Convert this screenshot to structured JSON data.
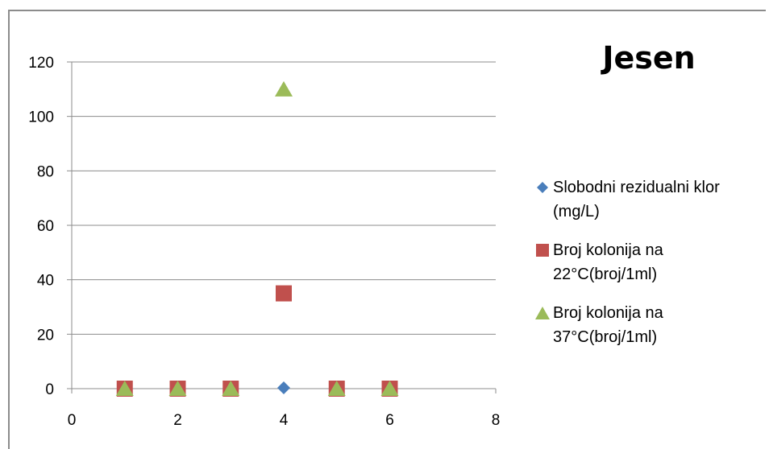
{
  "chart_data": {
    "type": "scatter",
    "title": "Jesen",
    "xlim": [
      0,
      8
    ],
    "ylim": [
      0,
      120
    ],
    "x_ticks": [
      "0",
      "2",
      "4",
      "6",
      "8"
    ],
    "y_ticks": [
      "0",
      "20",
      "40",
      "60",
      "80",
      "100",
      "120"
    ],
    "grid": "horizontal",
    "legend_position": "right",
    "series": [
      {
        "name": "Slobodni rezidualni klor (mg/L)",
        "marker": "diamond",
        "color": "#4a7ebb",
        "x": [
          1,
          2,
          3,
          4,
          5,
          6
        ],
        "y": [
          0.3,
          0.3,
          0.3,
          0.3,
          0.3,
          0.3
        ]
      },
      {
        "name": "Broj kolonija na 22°C(broj/1ml)",
        "marker": "square",
        "color": "#c0504d",
        "x": [
          1,
          2,
          3,
          4,
          5,
          6
        ],
        "y": [
          0,
          0,
          0,
          35,
          0,
          0
        ]
      },
      {
        "name": "Broj kolonija na 37°C(broj/1ml)",
        "marker": "triangle",
        "color": "#9bbb59",
        "x": [
          1,
          2,
          3,
          4,
          5,
          6
        ],
        "y": [
          0,
          0,
          0,
          110,
          0,
          0
        ]
      }
    ]
  }
}
